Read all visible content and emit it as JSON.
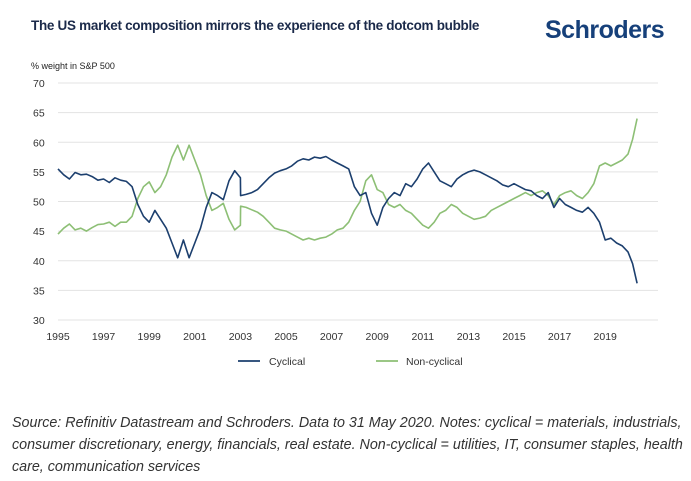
{
  "header": {
    "title": "The US market composition mirrors the experience of the dotcom bubble",
    "logo": "Schroders"
  },
  "source_note": "Source: Refinitiv Datastream and Schroders. Data to 31 May 2020. Notes: cyclical = materials, industrials, consumer discretionary, energy, financials, real estate. Non-cyclical = utilities, IT, consumer staples, health care, communication services",
  "colors": {
    "cyclical": "#1c3f6e",
    "non_cyclical": "#8dbf75",
    "grid": "#e3e3e3",
    "title": "#1b2a4a",
    "logo": "#16407a"
  },
  "chart_data": {
    "type": "line",
    "title": "The US market composition mirrors the experience of the dotcom bubble",
    "xlabel": "",
    "ylabel": "% weight in S&P 500",
    "ylim": [
      30,
      70
    ],
    "xlim": [
      1995,
      2020.4
    ],
    "yticks": [
      "30",
      "35",
      "40",
      "45",
      "50",
      "55",
      "60",
      "65",
      "70"
    ],
    "xticks": [
      "1995",
      "1997",
      "1999",
      "2001",
      "2003",
      "2005",
      "2007",
      "2009",
      "2011",
      "2013",
      "2015",
      "2017",
      "2019"
    ],
    "grid": true,
    "legend_position": "bottom-center",
    "x": [
      1995.0,
      1995.25,
      1995.5,
      1995.75,
      1996.0,
      1996.25,
      1996.5,
      1996.75,
      1997.0,
      1997.25,
      1997.5,
      1997.75,
      1998.0,
      1998.25,
      1998.5,
      1998.75,
      1999.0,
      1999.25,
      1999.5,
      1999.75,
      2000.0,
      2000.25,
      2000.5,
      2000.75,
      2001.0,
      2001.25,
      2001.5,
      2001.75,
      2002.0,
      2002.25,
      2002.5,
      2002.75,
      2003.0,
      2003.01,
      2003.25,
      2003.5,
      2003.75,
      2004.0,
      2004.25,
      2004.5,
      2004.75,
      2005.0,
      2005.25,
      2005.5,
      2005.75,
      2006.0,
      2006.25,
      2006.5,
      2006.75,
      2007.0,
      2007.25,
      2007.5,
      2007.75,
      2008.0,
      2008.25,
      2008.5,
      2008.75,
      2009.0,
      2009.25,
      2009.5,
      2009.75,
      2010.0,
      2010.25,
      2010.5,
      2010.75,
      2011.0,
      2011.25,
      2011.5,
      2011.75,
      2012.0,
      2012.25,
      2012.5,
      2012.75,
      2013.0,
      2013.25,
      2013.5,
      2013.75,
      2014.0,
      2014.25,
      2014.5,
      2014.75,
      2015.0,
      2015.25,
      2015.5,
      2015.75,
      2016.0,
      2016.25,
      2016.5,
      2016.75,
      2017.0,
      2017.25,
      2017.5,
      2017.75,
      2018.0,
      2018.25,
      2018.5,
      2018.75,
      2019.0,
      2019.25,
      2019.5,
      2019.75,
      2020.0,
      2020.2,
      2020.4
    ],
    "series": [
      {
        "name": "Cyclical",
        "values": [
          55.5,
          54.5,
          53.8,
          54.9,
          54.5,
          54.6,
          54.2,
          53.6,
          53.8,
          53.2,
          54.0,
          53.6,
          53.4,
          52.5,
          49.5,
          47.5,
          46.5,
          48.5,
          47.0,
          45.5,
          43.0,
          40.5,
          43.5,
          40.5,
          43.0,
          45.5,
          49.0,
          51.5,
          51.0,
          50.3,
          53.5,
          55.2,
          54.0,
          51.0,
          51.2,
          51.5,
          52.0,
          53.0,
          54.0,
          54.8,
          55.2,
          55.5,
          56.0,
          56.8,
          57.2,
          57.0,
          57.5,
          57.3,
          57.6,
          57.0,
          56.5,
          56.0,
          55.5,
          52.5,
          51.0,
          51.5,
          48.0,
          46.0,
          49.0,
          50.5,
          51.5,
          51.0,
          53.0,
          52.5,
          53.8,
          55.5,
          56.5,
          55.0,
          53.5,
          53.0,
          52.5,
          53.8,
          54.5,
          55.0,
          55.3,
          55.0,
          54.5,
          54.0,
          53.5,
          52.8,
          52.5,
          53.0,
          52.5,
          52.0,
          51.8,
          51.0,
          50.5,
          51.5,
          49.0,
          50.5,
          49.5,
          49.0,
          48.5,
          48.2,
          49.0,
          48.0,
          46.5,
          43.5,
          43.8,
          43.0,
          42.5,
          41.5,
          39.5,
          36.2
        ]
      },
      {
        "name": "Non-cyclical",
        "values": [
          44.5,
          45.5,
          46.2,
          45.2,
          45.5,
          45.0,
          45.6,
          46.1,
          46.2,
          46.5,
          45.8,
          46.5,
          46.5,
          47.5,
          50.5,
          52.5,
          53.3,
          51.5,
          52.5,
          54.5,
          57.5,
          59.5,
          57.0,
          59.5,
          57.0,
          54.5,
          51.0,
          48.5,
          49.0,
          49.7,
          47.0,
          45.2,
          46.0,
          49.2,
          49.0,
          48.6,
          48.2,
          47.5,
          46.5,
          45.5,
          45.2,
          45.0,
          44.5,
          44.0,
          43.5,
          43.8,
          43.5,
          43.8,
          44.0,
          44.5,
          45.2,
          45.5,
          46.5,
          48.5,
          50.0,
          53.5,
          54.5,
          52.0,
          51.5,
          49.5,
          49.0,
          49.5,
          48.5,
          48.0,
          47.0,
          46.0,
          45.5,
          46.5,
          48.0,
          48.5,
          49.5,
          49.0,
          48.0,
          47.5,
          47.0,
          47.2,
          47.5,
          48.5,
          49.0,
          49.5,
          50.0,
          50.5,
          51.0,
          51.5,
          51.0,
          51.5,
          51.8,
          51.0,
          49.5,
          51.0,
          51.5,
          51.8,
          51.0,
          50.5,
          51.5,
          53.0,
          56.0,
          56.5,
          56.0,
          56.5,
          57.0,
          58.0,
          60.5,
          64.0
        ]
      }
    ]
  }
}
